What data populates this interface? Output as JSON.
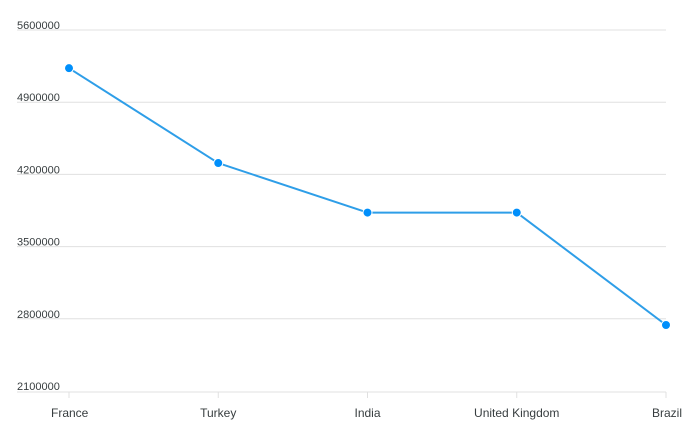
{
  "chart_data": {
    "type": "line",
    "title": "",
    "xlabel": "",
    "ylabel": "",
    "categories": [
      "France",
      "Turkey",
      "India",
      "United Kingdom",
      "Brazil"
    ],
    "series": [
      {
        "values": [
          5230000,
          4310000,
          3830000,
          3830000,
          2740000
        ]
      }
    ],
    "ylim": [
      2100000,
      5600000
    ],
    "yticks": [
      "2100000",
      "2800000",
      "3500000",
      "4200000",
      "4900000",
      "5600000"
    ],
    "grid": true,
    "legend": "none",
    "colors": {
      "line": "#2e9ee8",
      "marker": "#008ffb"
    }
  }
}
